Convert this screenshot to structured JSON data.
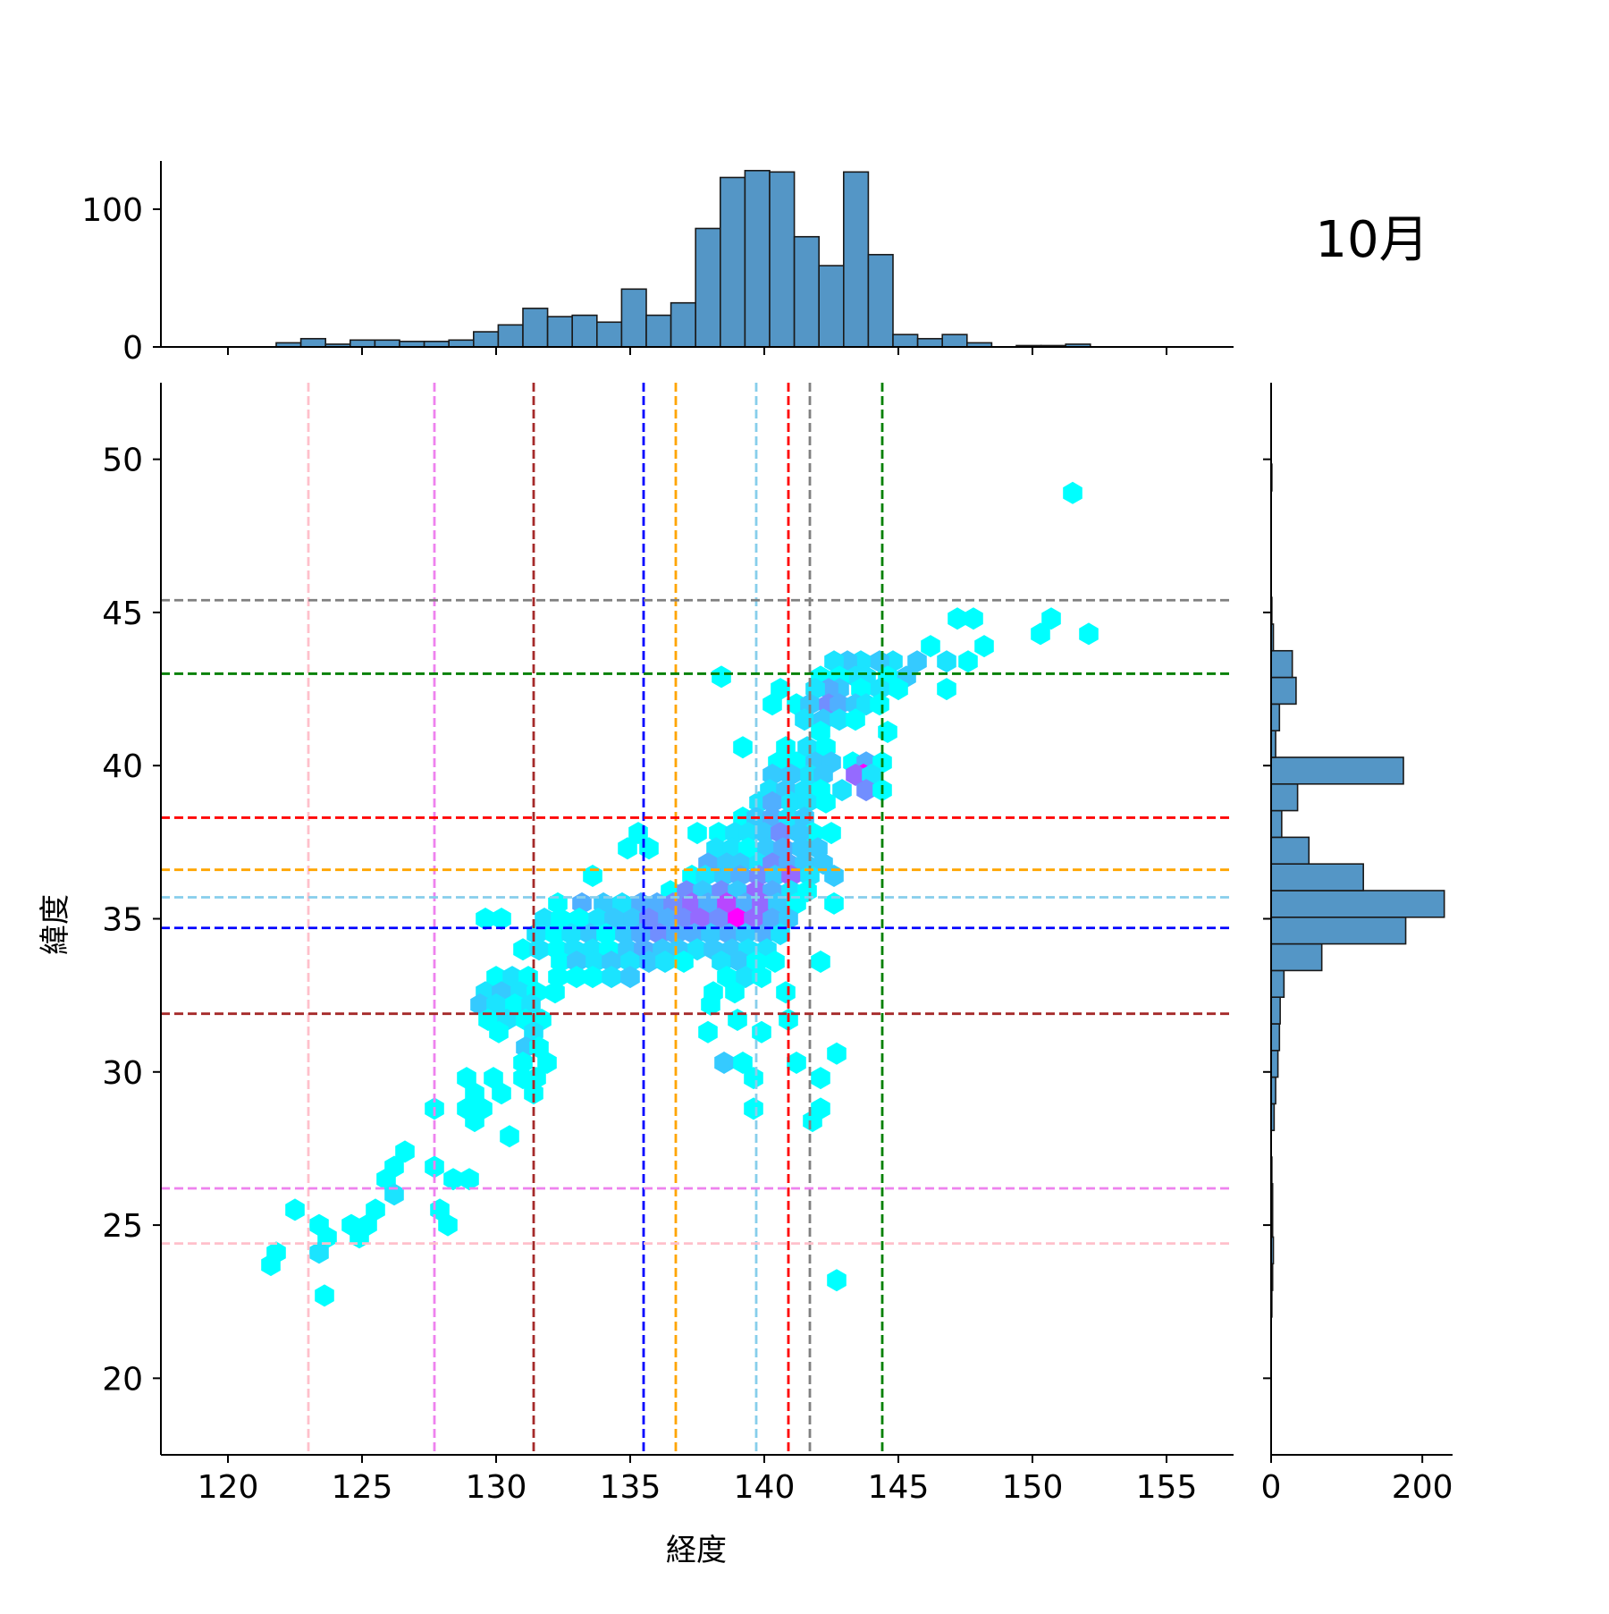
{
  "title": "10月",
  "colors": {
    "hist_fill": "#5496c6",
    "hist_edge": "#1a1a1a",
    "hex_low": "#00ffff",
    "hex_mid": "#55aaff",
    "hex_high": "#ff00ff"
  },
  "chart_data": {
    "type": "hexbin-joint",
    "xlabel": "経度",
    "ylabel": "緯度",
    "xlim": [
      117.5,
      157.5
    ],
    "ylim": [
      17.5,
      52.5
    ],
    "xticks": [
      "120",
      "125",
      "130",
      "135",
      "140",
      "145",
      "150",
      "155"
    ],
    "yticks": [
      "20",
      "25",
      "30",
      "35",
      "40",
      "45",
      "50"
    ],
    "hist_x": {
      "bin_start": 121.8,
      "bin_width": 0.92,
      "counts": [
        3,
        6,
        2,
        5,
        5,
        4,
        4,
        5,
        11,
        16,
        28,
        22,
        23,
        18,
        42,
        23,
        32,
        86,
        123,
        128,
        127,
        80,
        59,
        127,
        67,
        9,
        6,
        9,
        3,
        0,
        1,
        1,
        2
      ],
      "yticks": [
        "0",
        "100"
      ],
      "ylim": [
        0,
        135
      ]
    },
    "hist_y": {
      "bin_start": 22.0,
      "bin_width": 0.87,
      "counts": [
        1,
        2,
        3,
        2,
        2,
        1,
        0,
        4,
        6,
        9,
        11,
        12,
        17,
        67,
        178,
        229,
        122,
        50,
        14,
        35,
        175,
        6,
        11,
        33,
        28,
        3,
        1,
        0,
        0,
        0,
        0,
        1
      ],
      "xticks": [
        "0",
        "200"
      ],
      "xlim": [
        0,
        240
      ]
    },
    "vlines": [
      {
        "x": 123.0,
        "color": "#ffc0cb"
      },
      {
        "x": 127.7,
        "color": "#ee82ee"
      },
      {
        "x": 131.4,
        "color": "#a52a2a"
      },
      {
        "x": 135.5,
        "color": "#0000ff"
      },
      {
        "x": 136.7,
        "color": "#ffa500"
      },
      {
        "x": 139.7,
        "color": "#87ceeb"
      },
      {
        "x": 140.9,
        "color": "#ff0000"
      },
      {
        "x": 141.7,
        "color": "#808080"
      },
      {
        "x": 144.4,
        "color": "#008000"
      }
    ],
    "hlines": [
      {
        "y": 45.4,
        "color": "#808080"
      },
      {
        "y": 43.0,
        "color": "#008000"
      },
      {
        "y": 38.3,
        "color": "#ff0000"
      },
      {
        "y": 36.6,
        "color": "#ffa500"
      },
      {
        "y": 35.7,
        "color": "#87ceeb"
      },
      {
        "y": 34.7,
        "color": "#0000ff"
      },
      {
        "y": 31.9,
        "color": "#a52a2a"
      },
      {
        "y": 26.2,
        "color": "#ee82ee"
      },
      {
        "y": 24.4,
        "color": "#ffc0cb"
      }
    ],
    "hexbins": [
      [
        151.5,
        48.9,
        1
      ],
      [
        147.2,
        44.8,
        1
      ],
      [
        147.8,
        44.8,
        1
      ],
      [
        148.2,
        43.9,
        1
      ],
      [
        150.3,
        44.3,
        1
      ],
      [
        150.7,
        44.8,
        1
      ],
      [
        152.1,
        44.3,
        1
      ],
      [
        147.6,
        43.4,
        1
      ],
      [
        146.8,
        43.4,
        2
      ],
      [
        146.2,
        43.9,
        1
      ],
      [
        145.7,
        43.4,
        3
      ],
      [
        144.8,
        43.4,
        2
      ],
      [
        144.3,
        43.4,
        3
      ],
      [
        143.6,
        43.4,
        2
      ],
      [
        143.1,
        43.4,
        3
      ],
      [
        142.6,
        43.4,
        2
      ],
      [
        146.8,
        42.5,
        1
      ],
      [
        145.3,
        42.9,
        3
      ],
      [
        144.6,
        42.9,
        1
      ],
      [
        143.8,
        42.9,
        2
      ],
      [
        143.4,
        42.9,
        2
      ],
      [
        142.8,
        42.9,
        1
      ],
      [
        142.1,
        42.9,
        1
      ],
      [
        138.4,
        42.9,
        1
      ],
      [
        140.6,
        42.5,
        1
      ],
      [
        145.0,
        42.5,
        1
      ],
      [
        144.3,
        42.5,
        2
      ],
      [
        143.6,
        42.5,
        1
      ],
      [
        142.8,
        42.5,
        3
      ],
      [
        142.4,
        42.5,
        4
      ],
      [
        141.9,
        42.5,
        2
      ],
      [
        140.3,
        42.0,
        1
      ],
      [
        141.2,
        42.0,
        1
      ],
      [
        141.7,
        42.0,
        3
      ],
      [
        142.4,
        42.0,
        5
      ],
      [
        142.8,
        42.0,
        4
      ],
      [
        143.4,
        42.0,
        3
      ],
      [
        143.8,
        42.0,
        2
      ],
      [
        144.3,
        42.0,
        1
      ],
      [
        141.5,
        41.5,
        2
      ],
      [
        142.2,
        41.5,
        3
      ],
      [
        142.8,
        41.5,
        2
      ],
      [
        143.4,
        41.5,
        1
      ],
      [
        142.1,
        41.1,
        1
      ],
      [
        144.6,
        41.1,
        1
      ],
      [
        139.2,
        40.6,
        1
      ],
      [
        140.8,
        40.6,
        1
      ],
      [
        141.6,
        40.6,
        2
      ],
      [
        142.3,
        40.6,
        1
      ],
      [
        140.5,
        40.1,
        1
      ],
      [
        141.2,
        40.1,
        1
      ],
      [
        141.9,
        40.1,
        3
      ],
      [
        142.5,
        40.1,
        3
      ],
      [
        143.3,
        40.1,
        1
      ],
      [
        143.8,
        40.1,
        4
      ],
      [
        144.4,
        40.1,
        1
      ],
      [
        140.3,
        39.7,
        3
      ],
      [
        141.0,
        39.7,
        3
      ],
      [
        141.7,
        39.7,
        2
      ],
      [
        142.2,
        39.7,
        3
      ],
      [
        143.7,
        39.7,
        9
      ],
      [
        143.4,
        39.7,
        6
      ],
      [
        144.0,
        39.7,
        2
      ],
      [
        140.2,
        39.2,
        2
      ],
      [
        140.8,
        39.2,
        3
      ],
      [
        141.5,
        39.2,
        2
      ],
      [
        142.1,
        39.2,
        1
      ],
      [
        142.9,
        39.2,
        2
      ],
      [
        143.8,
        39.2,
        5
      ],
      [
        144.4,
        39.2,
        1
      ],
      [
        139.8,
        38.8,
        2
      ],
      [
        140.3,
        38.8,
        4
      ],
      [
        141.0,
        38.8,
        2
      ],
      [
        141.6,
        38.8,
        2
      ],
      [
        142.3,
        38.8,
        1
      ],
      [
        139.2,
        38.3,
        1
      ],
      [
        139.7,
        38.3,
        3
      ],
      [
        140.3,
        38.3,
        4
      ],
      [
        140.9,
        38.3,
        2
      ],
      [
        141.5,
        38.3,
        3
      ],
      [
        141.8,
        37.8,
        1
      ],
      [
        135.3,
        37.8,
        1
      ],
      [
        134.9,
        37.3,
        1
      ],
      [
        135.7,
        37.3,
        1
      ],
      [
        137.5,
        37.8,
        1
      ],
      [
        138.3,
        37.8,
        1
      ],
      [
        138.9,
        37.8,
        2
      ],
      [
        139.4,
        37.8,
        2
      ],
      [
        140.0,
        37.8,
        3
      ],
      [
        140.6,
        37.8,
        5
      ],
      [
        141.3,
        37.8,
        3
      ],
      [
        142.5,
        37.8,
        1
      ],
      [
        138.2,
        37.3,
        2
      ],
      [
        138.8,
        37.3,
        2
      ],
      [
        139.4,
        37.3,
        1
      ],
      [
        140.1,
        37.3,
        3
      ],
      [
        140.7,
        37.3,
        4
      ],
      [
        141.4,
        37.3,
        3
      ],
      [
        142.0,
        37.3,
        3
      ],
      [
        137.9,
        36.8,
        4
      ],
      [
        138.6,
        36.8,
        3
      ],
      [
        139.1,
        36.8,
        3
      ],
      [
        139.8,
        36.8,
        2
      ],
      [
        140.3,
        36.8,
        5
      ],
      [
        140.9,
        36.8,
        4
      ],
      [
        141.5,
        36.8,
        3
      ],
      [
        142.2,
        36.8,
        3
      ],
      [
        133.6,
        36.4,
        1
      ],
      [
        137.3,
        36.4,
        1
      ],
      [
        137.8,
        36.4,
        2
      ],
      [
        138.5,
        36.4,
        3
      ],
      [
        139.1,
        36.4,
        4
      ],
      [
        139.8,
        36.4,
        5
      ],
      [
        140.4,
        36.4,
        3
      ],
      [
        141.0,
        36.4,
        6
      ],
      [
        141.7,
        36.4,
        2
      ],
      [
        142.6,
        36.4,
        3
      ],
      [
        136.5,
        35.9,
        1
      ],
      [
        137.1,
        35.9,
        5
      ],
      [
        137.7,
        35.9,
        3
      ],
      [
        138.4,
        35.9,
        5
      ],
      [
        139.0,
        35.9,
        3
      ],
      [
        139.7,
        35.9,
        6
      ],
      [
        140.3,
        35.9,
        4
      ],
      [
        141.0,
        35.9,
        2
      ],
      [
        141.6,
        35.9,
        1
      ],
      [
        132.3,
        35.5,
        1
      ],
      [
        133.2,
        35.5,
        4
      ],
      [
        134.0,
        35.5,
        3
      ],
      [
        134.7,
        35.5,
        2
      ],
      [
        135.4,
        35.5,
        4
      ],
      [
        136.0,
        35.5,
        4
      ],
      [
        136.6,
        35.5,
        5
      ],
      [
        137.3,
        35.5,
        6
      ],
      [
        137.9,
        35.5,
        4
      ],
      [
        138.6,
        35.5,
        7
      ],
      [
        139.3,
        35.5,
        4
      ],
      [
        139.9,
        35.5,
        6
      ],
      [
        140.5,
        35.5,
        3
      ],
      [
        141.2,
        35.5,
        1
      ],
      [
        142.6,
        35.5,
        1
      ],
      [
        129.6,
        35.0,
        1
      ],
      [
        130.2,
        35.0,
        1
      ],
      [
        131.8,
        35.0,
        2
      ],
      [
        132.4,
        35.0,
        1
      ],
      [
        133.1,
        35.0,
        1
      ],
      [
        133.8,
        35.0,
        2
      ],
      [
        134.4,
        35.0,
        3
      ],
      [
        135.1,
        35.0,
        3
      ],
      [
        135.7,
        35.0,
        5
      ],
      [
        136.4,
        35.0,
        4
      ],
      [
        137.0,
        35.0,
        5
      ],
      [
        137.6,
        35.0,
        6
      ],
      [
        138.3,
        35.0,
        5
      ],
      [
        139.0,
        35.0,
        9
      ],
      [
        139.6,
        35.0,
        6
      ],
      [
        140.3,
        35.0,
        4
      ],
      [
        140.9,
        35.0,
        3
      ],
      [
        131.5,
        34.5,
        2
      ],
      [
        132.2,
        34.5,
        1
      ],
      [
        132.8,
        34.5,
        2
      ],
      [
        133.5,
        34.5,
        3
      ],
      [
        134.1,
        34.5,
        1
      ],
      [
        134.8,
        34.5,
        3
      ],
      [
        135.4,
        34.5,
        4
      ],
      [
        136.1,
        34.5,
        5
      ],
      [
        136.7,
        34.5,
        4
      ],
      [
        137.4,
        34.5,
        4
      ],
      [
        138.0,
        34.5,
        3
      ],
      [
        138.7,
        34.5,
        4
      ],
      [
        139.3,
        34.5,
        3
      ],
      [
        140.0,
        34.5,
        4
      ],
      [
        140.6,
        34.5,
        2
      ],
      [
        131.0,
        34.0,
        1
      ],
      [
        131.6,
        34.0,
        2
      ],
      [
        132.3,
        34.0,
        1
      ],
      [
        132.9,
        34.0,
        2
      ],
      [
        133.6,
        34.0,
        2
      ],
      [
        134.2,
        34.0,
        1
      ],
      [
        134.9,
        34.0,
        3
      ],
      [
        135.5,
        34.0,
        4
      ],
      [
        136.2,
        34.0,
        3
      ],
      [
        136.8,
        34.0,
        3
      ],
      [
        137.5,
        34.0,
        2
      ],
      [
        138.1,
        34.0,
        3
      ],
      [
        138.8,
        34.0,
        3
      ],
      [
        139.4,
        34.0,
        2
      ],
      [
        140.1,
        34.0,
        2
      ],
      [
        132.4,
        33.6,
        1
      ],
      [
        133.0,
        33.6,
        3
      ],
      [
        133.7,
        33.6,
        2
      ],
      [
        134.3,
        33.6,
        3
      ],
      [
        135.0,
        33.6,
        2
      ],
      [
        135.7,
        33.6,
        3
      ],
      [
        136.3,
        33.6,
        2
      ],
      [
        137.0,
        33.6,
        1
      ],
      [
        138.4,
        33.6,
        2
      ],
      [
        139.1,
        33.6,
        3
      ],
      [
        139.7,
        33.6,
        1
      ],
      [
        140.4,
        33.6,
        1
      ],
      [
        142.1,
        33.6,
        1
      ],
      [
        130.0,
        33.1,
        1
      ],
      [
        130.6,
        33.1,
        2
      ],
      [
        131.2,
        33.1,
        1
      ],
      [
        132.3,
        33.1,
        1
      ],
      [
        133.0,
        33.1,
        1
      ],
      [
        133.6,
        33.1,
        1
      ],
      [
        134.3,
        33.1,
        2
      ],
      [
        135.0,
        33.1,
        3
      ],
      [
        138.6,
        33.1,
        1
      ],
      [
        139.3,
        33.1,
        2
      ],
      [
        139.9,
        33.1,
        1
      ],
      [
        129.6,
        32.6,
        2
      ],
      [
        130.2,
        32.6,
        3
      ],
      [
        130.9,
        32.6,
        2
      ],
      [
        131.5,
        32.6,
        1
      ],
      [
        132.2,
        32.6,
        1
      ],
      [
        138.1,
        32.6,
        1
      ],
      [
        138.9,
        32.6,
        1
      ],
      [
        140.8,
        32.6,
        1
      ],
      [
        129.4,
        32.2,
        3
      ],
      [
        130.0,
        32.2,
        2
      ],
      [
        130.7,
        32.2,
        1
      ],
      [
        131.3,
        32.2,
        2
      ],
      [
        138.0,
        32.2,
        1
      ],
      [
        129.7,
        31.7,
        1
      ],
      [
        130.4,
        31.7,
        2
      ],
      [
        131.1,
        31.7,
        1
      ],
      [
        131.7,
        31.7,
        1
      ],
      [
        139.0,
        31.7,
        1
      ],
      [
        140.9,
        31.7,
        1
      ],
      [
        130.1,
        31.3,
        1
      ],
      [
        131.4,
        31.3,
        2
      ],
      [
        137.9,
        31.3,
        1
      ],
      [
        139.9,
        31.3,
        1
      ],
      [
        131.1,
        30.8,
        3
      ],
      [
        131.6,
        30.8,
        1
      ],
      [
        142.7,
        30.6,
        1
      ],
      [
        131.0,
        30.3,
        1
      ],
      [
        131.9,
        30.3,
        1
      ],
      [
        138.5,
        30.3,
        3
      ],
      [
        139.2,
        30.3,
        1
      ],
      [
        141.2,
        30.3,
        1
      ],
      [
        128.9,
        29.8,
        1
      ],
      [
        129.9,
        29.8,
        1
      ],
      [
        131.0,
        29.8,
        1
      ],
      [
        131.5,
        29.8,
        1
      ],
      [
        139.6,
        29.8,
        1
      ],
      [
        142.1,
        29.8,
        1
      ],
      [
        129.2,
        29.3,
        1
      ],
      [
        130.2,
        29.3,
        1
      ],
      [
        131.4,
        29.3,
        1
      ],
      [
        128.9,
        28.8,
        1
      ],
      [
        129.5,
        28.8,
        1
      ],
      [
        127.7,
        28.8,
        1
      ],
      [
        139.6,
        28.8,
        1
      ],
      [
        142.1,
        28.8,
        1
      ],
      [
        129.2,
        28.4,
        1
      ],
      [
        141.8,
        28.4,
        1
      ],
      [
        130.5,
        27.9,
        1
      ],
      [
        126.6,
        27.4,
        1
      ],
      [
        126.2,
        26.9,
        1
      ],
      [
        127.7,
        26.9,
        1
      ],
      [
        125.9,
        26.5,
        1
      ],
      [
        126.2,
        26.0,
        2
      ],
      [
        128.4,
        26.5,
        1
      ],
      [
        129.0,
        26.5,
        1
      ],
      [
        122.5,
        25.5,
        1
      ],
      [
        124.6,
        25.0,
        1
      ],
      [
        125.2,
        25.0,
        1
      ],
      [
        125.5,
        25.5,
        1
      ],
      [
        127.9,
        25.5,
        1
      ],
      [
        128.2,
        25.0,
        1
      ],
      [
        123.4,
        25.0,
        1
      ],
      [
        123.7,
        24.6,
        1
      ],
      [
        124.9,
        24.6,
        1
      ],
      [
        121.8,
        24.1,
        1
      ],
      [
        123.4,
        24.1,
        2
      ],
      [
        121.6,
        23.7,
        1
      ],
      [
        142.7,
        23.2,
        1
      ],
      [
        123.6,
        22.7,
        1
      ]
    ]
  }
}
